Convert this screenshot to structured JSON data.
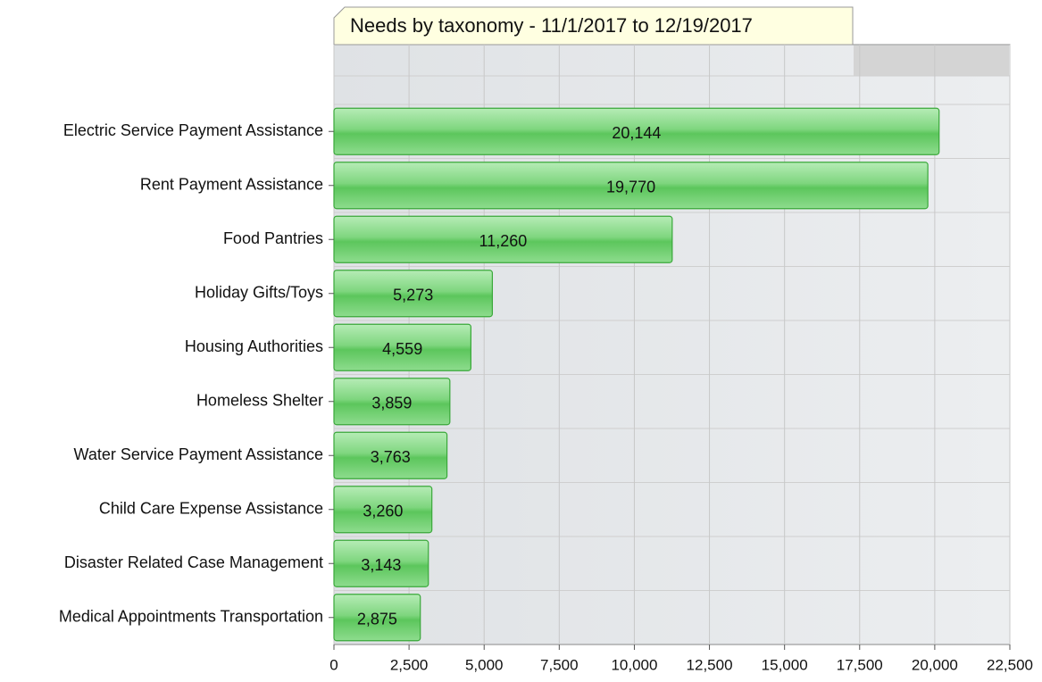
{
  "chart_data": {
    "type": "bar",
    "orientation": "horizontal",
    "title": "Needs by taxonomy - 11/1/2017 to 12/19/2017",
    "categories": [
      "Electric Service Payment Assistance",
      "Rent Payment Assistance",
      "Food Pantries",
      "Holiday Gifts/Toys",
      "Housing Authorities",
      "Homeless Shelter",
      "Water Service Payment Assistance",
      "Child Care Expense Assistance",
      "Disaster Related Case Management",
      "Medical Appointments Transportation"
    ],
    "values": [
      20144,
      19770,
      11260,
      5273,
      4559,
      3859,
      3763,
      3260,
      3143,
      2875
    ],
    "value_labels": [
      "20,144",
      "19,770",
      "11,260",
      "5,273",
      "4,559",
      "3,859",
      "3,763",
      "3,260",
      "3,143",
      "2,875"
    ],
    "color": "#5cc65c",
    "xlim": [
      0,
      22500
    ],
    "xticks": [
      0,
      {
        "value": 2500,
        "label": "2,500"
      },
      {
        "value": 5000,
        "label": "5,000"
      },
      {
        "value": 7500,
        "label": "7,500"
      },
      {
        "value": 10000,
        "label": "10,000"
      },
      {
        "value": 12500,
        "label": "12,500"
      },
      {
        "value": 15000,
        "label": "15,000"
      },
      {
        "value": 17500,
        "label": "17,500"
      },
      {
        "value": 20000,
        "label": "20,000"
      },
      {
        "value": 22500,
        "label": "22,500"
      }
    ],
    "grid": true
  }
}
